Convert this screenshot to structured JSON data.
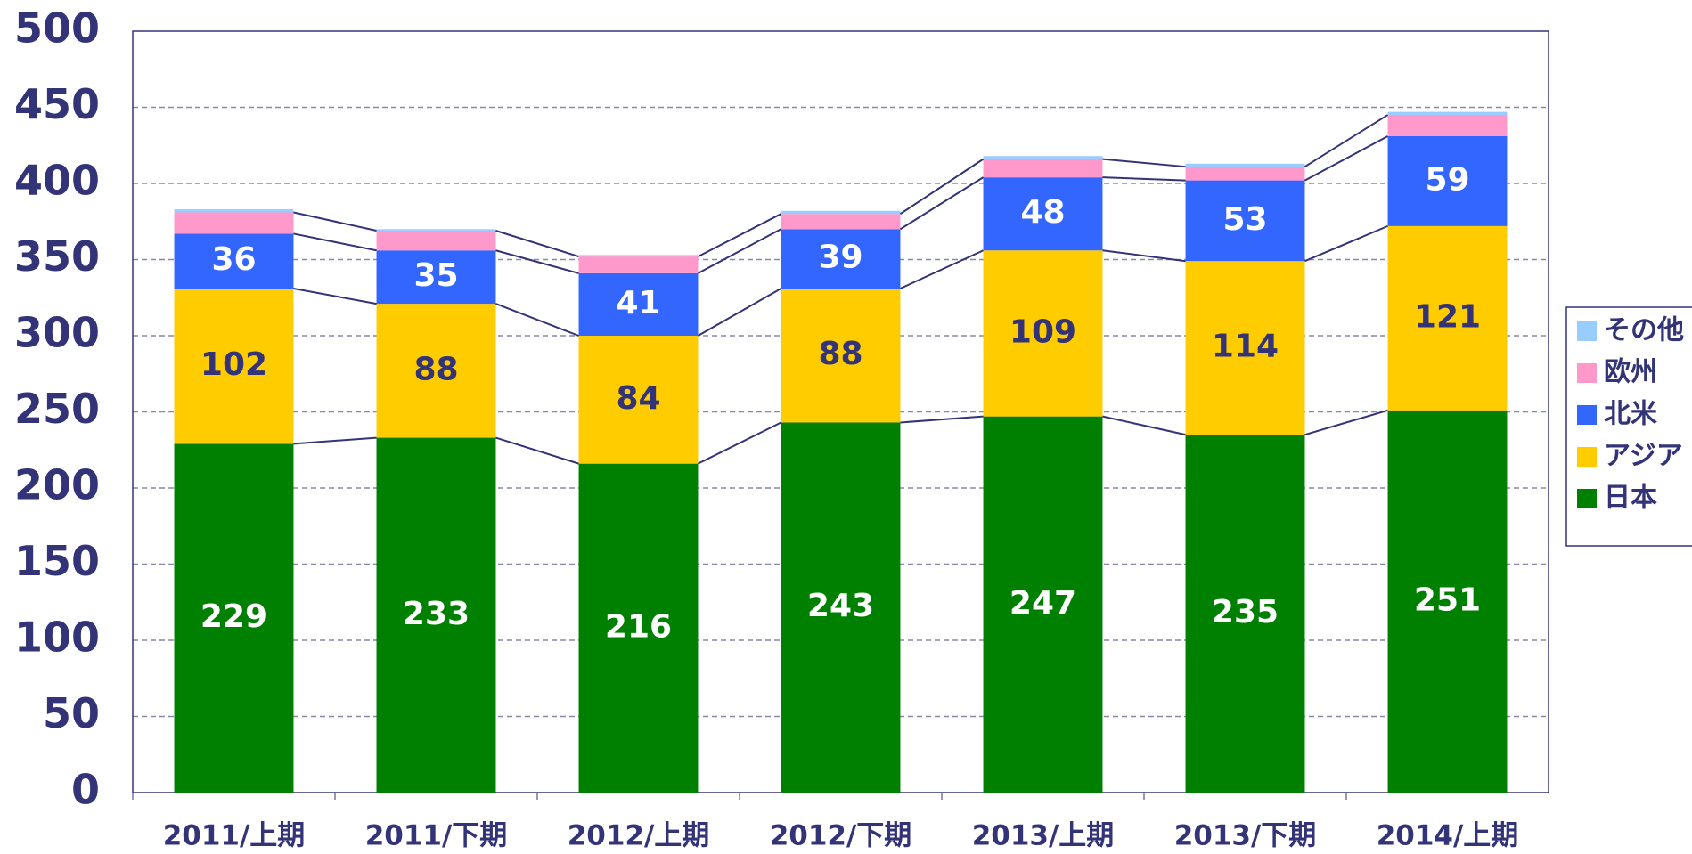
{
  "chart_data": {
    "type": "stacked_bar",
    "categories": [
      "2011/上期",
      "2011/下期",
      "2012/上期",
      "2012/下期",
      "2013/上期",
      "2013/下期",
      "2014/上期"
    ],
    "series": [
      {
        "name": "日本",
        "color": "#008000",
        "values": [
          229,
          233,
          216,
          243,
          247,
          235,
          251
        ]
      },
      {
        "name": "アジア",
        "color": "#ffcc00",
        "values": [
          102,
          88,
          84,
          88,
          109,
          114,
          121
        ]
      },
      {
        "name": "北米",
        "color": "#3366ff",
        "values": [
          36,
          35,
          41,
          39,
          48,
          53,
          59
        ]
      },
      {
        "name": "欧州",
        "color": "#ff99cc",
        "values": [
          14,
          13,
          11,
          10,
          12,
          9,
          14
        ]
      },
      {
        "name": "その他",
        "color": "#99ccff",
        "values": [
          2,
          1,
          1,
          2,
          2,
          2,
          2
        ]
      }
    ],
    "labeled_series": [
      0,
      1,
      2
    ],
    "ylim": [
      0,
      500
    ],
    "yticks": [
      0,
      50,
      100,
      150,
      200,
      250,
      300,
      350,
      400,
      450,
      500
    ],
    "grid": true,
    "legend": "right"
  }
}
